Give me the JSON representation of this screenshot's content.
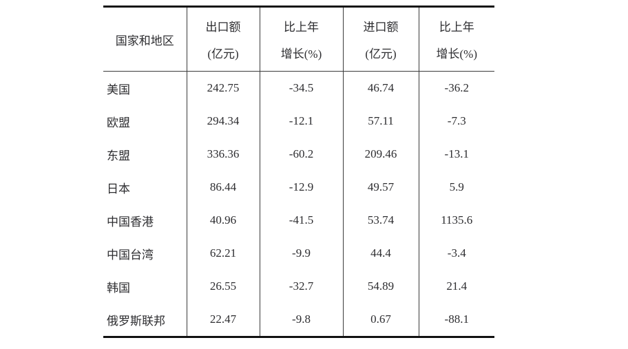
{
  "table": {
    "columns": [
      {
        "line1": "国家和地区",
        "line2": ""
      },
      {
        "line1": "出口额",
        "line2": "(亿元)"
      },
      {
        "line1": "比上年",
        "line2": "增长(%)"
      },
      {
        "line1": "进口额",
        "line2": "(亿元)"
      },
      {
        "line1": "比上年",
        "line2": "增长(%)"
      }
    ],
    "rows": [
      {
        "region": "美国",
        "export": "242.75",
        "export_growth": "-34.5",
        "import": "46.74",
        "import_growth": "-36.2"
      },
      {
        "region": "欧盟",
        "export": "294.34",
        "export_growth": "-12.1",
        "import": "57.11",
        "import_growth": "-7.3"
      },
      {
        "region": "东盟",
        "export": "336.36",
        "export_growth": "-60.2",
        "import": "209.46",
        "import_growth": "-13.1"
      },
      {
        "region": "日本",
        "export": "86.44",
        "export_growth": "-12.9",
        "import": "49.57",
        "import_growth": "5.9"
      },
      {
        "region": "中国香港",
        "export": "40.96",
        "export_growth": "-41.5",
        "import": "53.74",
        "import_growth": "1135.6"
      },
      {
        "region": "中国台湾",
        "export": "62.21",
        "export_growth": "-9.9",
        "import": "44.4",
        "import_growth": "-3.4"
      },
      {
        "region": "韩国",
        "export": "26.55",
        "export_growth": "-32.7",
        "import": "54.89",
        "import_growth": "21.4"
      },
      {
        "region": "俄罗斯联邦",
        "export": "22.47",
        "export_growth": "-9.8",
        "import": "0.67",
        "import_growth": "-88.1"
      }
    ]
  },
  "chart_data": {
    "type": "table",
    "title": "",
    "columns": [
      "国家和地区",
      "出口额(亿元)",
      "比上年增长(%)",
      "进口额(亿元)",
      "比上年增长(%)"
    ],
    "categories": [
      "美国",
      "欧盟",
      "东盟",
      "日本",
      "中国香港",
      "中国台湾",
      "韩国",
      "俄罗斯联邦"
    ],
    "series": [
      {
        "name": "出口额(亿元)",
        "values": [
          242.75,
          294.34,
          336.36,
          86.44,
          40.96,
          62.21,
          26.55,
          22.47
        ]
      },
      {
        "name": "出口比上年增长(%)",
        "values": [
          -34.5,
          -12.1,
          -60.2,
          -12.9,
          -41.5,
          -9.9,
          -32.7,
          -9.8
        ]
      },
      {
        "name": "进口额(亿元)",
        "values": [
          46.74,
          57.11,
          209.46,
          49.57,
          53.74,
          44.4,
          54.89,
          0.67
        ]
      },
      {
        "name": "进口比上年增长(%)",
        "values": [
          -36.2,
          -7.3,
          -13.1,
          5.9,
          1135.6,
          -3.4,
          21.4,
          -88.1
        ]
      }
    ]
  },
  "colors": {
    "background": "#ffffff",
    "text": "#2d2d30",
    "border_thick": "#111111",
    "border_thin": "#3a3a3a"
  }
}
